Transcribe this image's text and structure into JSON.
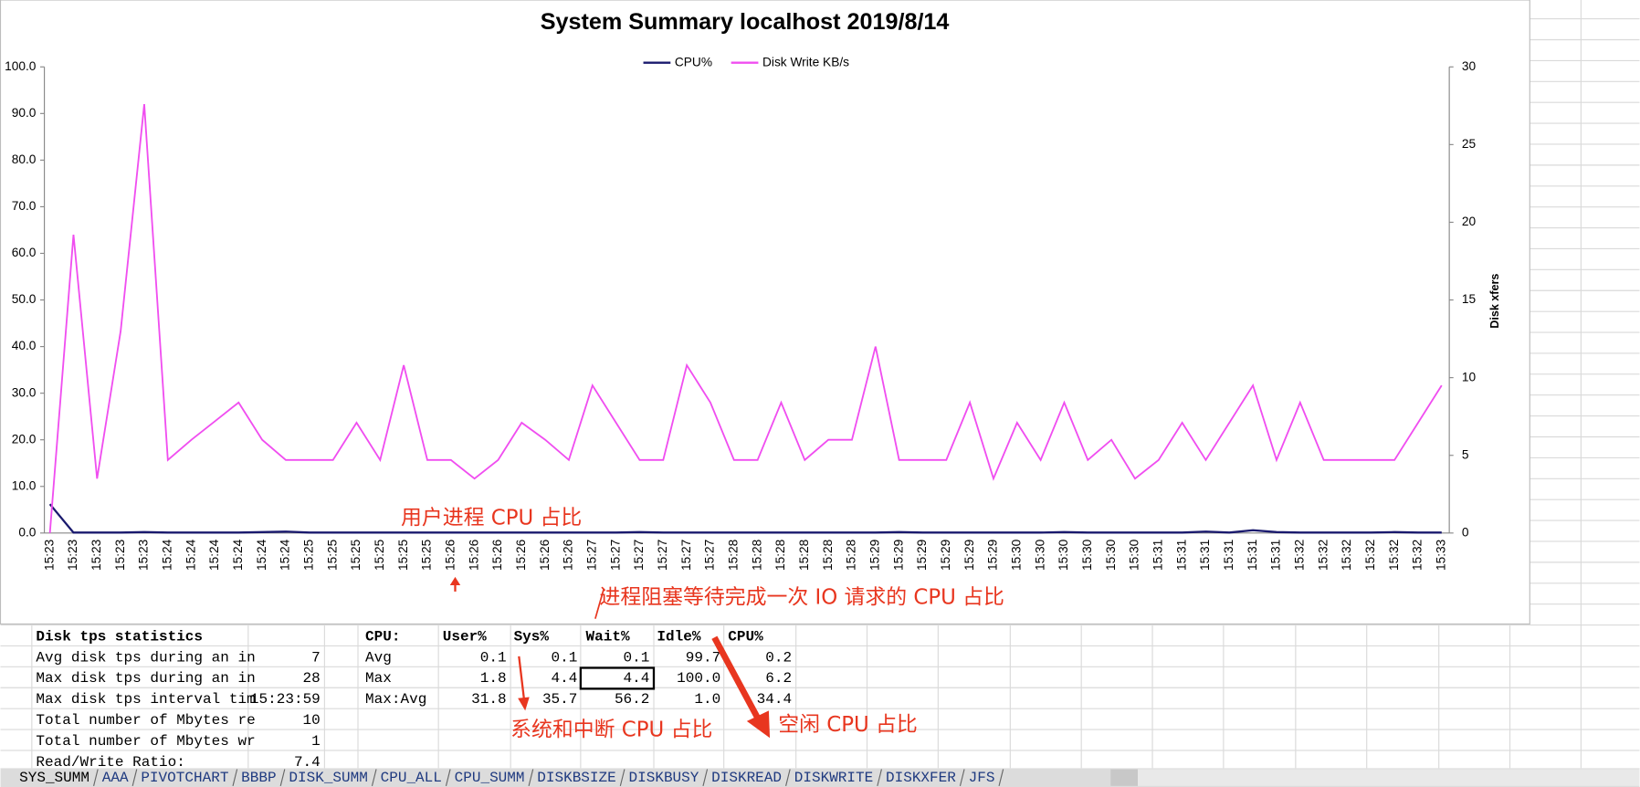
{
  "chart_data": {
    "type": "line",
    "title": "System Summary localhost  2019/8/14",
    "y2_label": "Disk xfers",
    "categories": [
      "15:23",
      "15:23",
      "15:23",
      "15:23",
      "15:23",
      "15:24",
      "15:24",
      "15:24",
      "15:24",
      "15:24",
      "15:24",
      "15:25",
      "15:25",
      "15:25",
      "15:25",
      "15:25",
      "15:25",
      "15:26",
      "15:26",
      "15:26",
      "15:26",
      "15:26",
      "15:26",
      "15:27",
      "15:27",
      "15:27",
      "15:27",
      "15:27",
      "15:27",
      "15:28",
      "15:28",
      "15:28",
      "15:28",
      "15:28",
      "15:28",
      "15:29",
      "15:29",
      "15:29",
      "15:29",
      "15:29",
      "15:29",
      "15:30",
      "15:30",
      "15:30",
      "15:30",
      "15:30",
      "15:30",
      "15:31",
      "15:31",
      "15:31",
      "15:31",
      "15:31",
      "15:31",
      "15:32",
      "15:32",
      "15:32",
      "15:32",
      "15:32",
      "15:32",
      "15:33"
    ],
    "series": [
      {
        "name": "CPU%",
        "color": "#1a1a6e",
        "axis": "y",
        "values": [
          6.2,
          0.1,
          0.1,
          0.1,
          0.2,
          0.1,
          0.1,
          0.1,
          0.1,
          0.2,
          0.3,
          0.1,
          0.1,
          0.1,
          0.1,
          0.1,
          0.1,
          0.1,
          0.1,
          0.1,
          0.1,
          0.1,
          0.1,
          0.1,
          0.1,
          0.2,
          0.1,
          0.1,
          0.1,
          0.1,
          0.1,
          0.1,
          0.1,
          0.1,
          0.1,
          0.1,
          0.2,
          0.1,
          0.1,
          0.1,
          0.1,
          0.1,
          0.1,
          0.2,
          0.1,
          0.1,
          0.1,
          0.1,
          0.1,
          0.3,
          0.1,
          0.6,
          0.2,
          0.1,
          0.1,
          0.1,
          0.1,
          0.2,
          0.1,
          0.1
        ]
      },
      {
        "name": "Disk Write KB/s",
        "color": "#f04ef0",
        "axis": "y2",
        "values": [
          0,
          19.2,
          3.5,
          13,
          27.6,
          4.7,
          6,
          7.2,
          8.4,
          6,
          4.7,
          4.7,
          4.7,
          7.1,
          4.7,
          10.8,
          4.7,
          4.7,
          3.5,
          4.7,
          7.1,
          6,
          4.7,
          9.5,
          7.1,
          4.7,
          4.7,
          10.8,
          8.4,
          4.7,
          4.7,
          8.4,
          4.7,
          6,
          6,
          12,
          4.7,
          4.7,
          4.7,
          8.4,
          3.5,
          7.1,
          4.7,
          8.4,
          4.7,
          6,
          3.5,
          4.7,
          7.1,
          4.7,
          7.1,
          9.5,
          4.7,
          8.4,
          4.7,
          4.7,
          4.7,
          4.7,
          7.1,
          9.5
        ]
      }
    ],
    "ylim": [
      0,
      100
    ],
    "yticks": [
      {
        "value": 0,
        "label": "0.0"
      },
      {
        "value": 10,
        "label": "10.0"
      },
      {
        "value": 20,
        "label": "20.0"
      },
      {
        "value": 30,
        "label": "30.0"
      },
      {
        "value": 40,
        "label": "40.0"
      },
      {
        "value": 50,
        "label": "50.0"
      },
      {
        "value": 60,
        "label": "60.0"
      },
      {
        "value": 70,
        "label": "70.0"
      },
      {
        "value": 80,
        "label": "80.0"
      },
      {
        "value": 90,
        "label": "90.0"
      },
      {
        "value": 100,
        "label": "100.0"
      }
    ],
    "y2lim": [
      0,
      30
    ],
    "y2ticks": [
      0,
      5,
      10,
      15,
      20,
      25,
      30
    ],
    "grid": false,
    "legend": "top"
  },
  "disk_stats": {
    "title": "Disk tps statistics",
    "rows": [
      [
        "Avg disk tps during an in",
        "7"
      ],
      [
        "Max disk tps during an in",
        "28"
      ],
      [
        "Max disk tps interval tim",
        "15:23:59"
      ],
      [
        "Total number of Mbytes re",
        "10"
      ],
      [
        "Total number of Mbytes wr",
        "1"
      ],
      [
        "Read/Write Ratio:",
        "7.4"
      ]
    ]
  },
  "cpu_stats": {
    "header": [
      "CPU:",
      "User%",
      "Sys%",
      "Wait%",
      "Idle%",
      "CPU%"
    ],
    "rows": [
      [
        "Avg",
        "0.1",
        "0.1",
        "0.1",
        "99.7",
        "0.2"
      ],
      [
        "Max",
        "1.8",
        "4.4",
        "4.4",
        "100.0",
        "6.2"
      ],
      [
        "Max:Avg",
        "31.8",
        "35.7",
        "56.2",
        "1.0",
        "34.4"
      ]
    ]
  },
  "annotations": [
    "用户进程 CPU 占比",
    "进程阻塞等待完成一次 IO 请求的 CPU 占比",
    "系统和中断 CPU 占比",
    "空闲 CPU 占比"
  ],
  "sheet_tabs": [
    "SYS_SUMM",
    "AAA",
    "PIVOTCHART",
    "BBBP",
    "DISK_SUMM",
    "CPU_ALL",
    "CPU_SUMM",
    "DISKBSIZE",
    "DISKBUSY",
    "DISKREAD",
    "DISKWRITE",
    "DISKXFER",
    "JFS"
  ]
}
